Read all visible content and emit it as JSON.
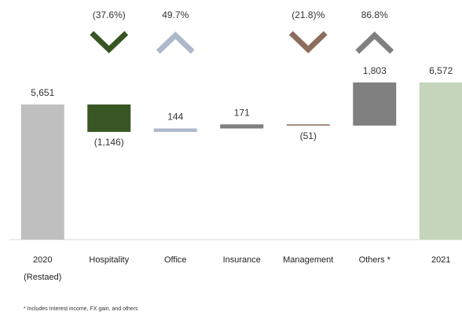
{
  "chart_data": {
    "type": "waterfall",
    "categories": [
      "2020\n(Restaed)",
      "Hospitality",
      "Office",
      "Insurance",
      "Management",
      "Others *",
      "2021"
    ],
    "measure": [
      "absolute",
      "relative",
      "relative",
      "relative",
      "relative",
      "relative",
      "total"
    ],
    "values": [
      5651,
      -1146,
      144,
      171,
      -51,
      1803,
      6572
    ],
    "value_labels": [
      "5,651",
      "(1,146)",
      "144",
      "171",
      "(51)",
      "1,803",
      "6,572"
    ],
    "colors": [
      "#bfbfbf",
      "#375623",
      "#adb9ca",
      "#7f7f7f",
      "#8c6e5d",
      "#808080",
      "#c5d5bb"
    ],
    "change_values": [
      null,
      -37.6,
      49.7,
      null,
      -21.8,
      86.8,
      null
    ],
    "change_labels": [
      null,
      "(37.6%)",
      "49.7%",
      null,
      "(21.8)%",
      "86.8%",
      null
    ],
    "ylim": [
      0,
      6572
    ],
    "footnote": "* Includes Interest income, FX gain, and others"
  }
}
